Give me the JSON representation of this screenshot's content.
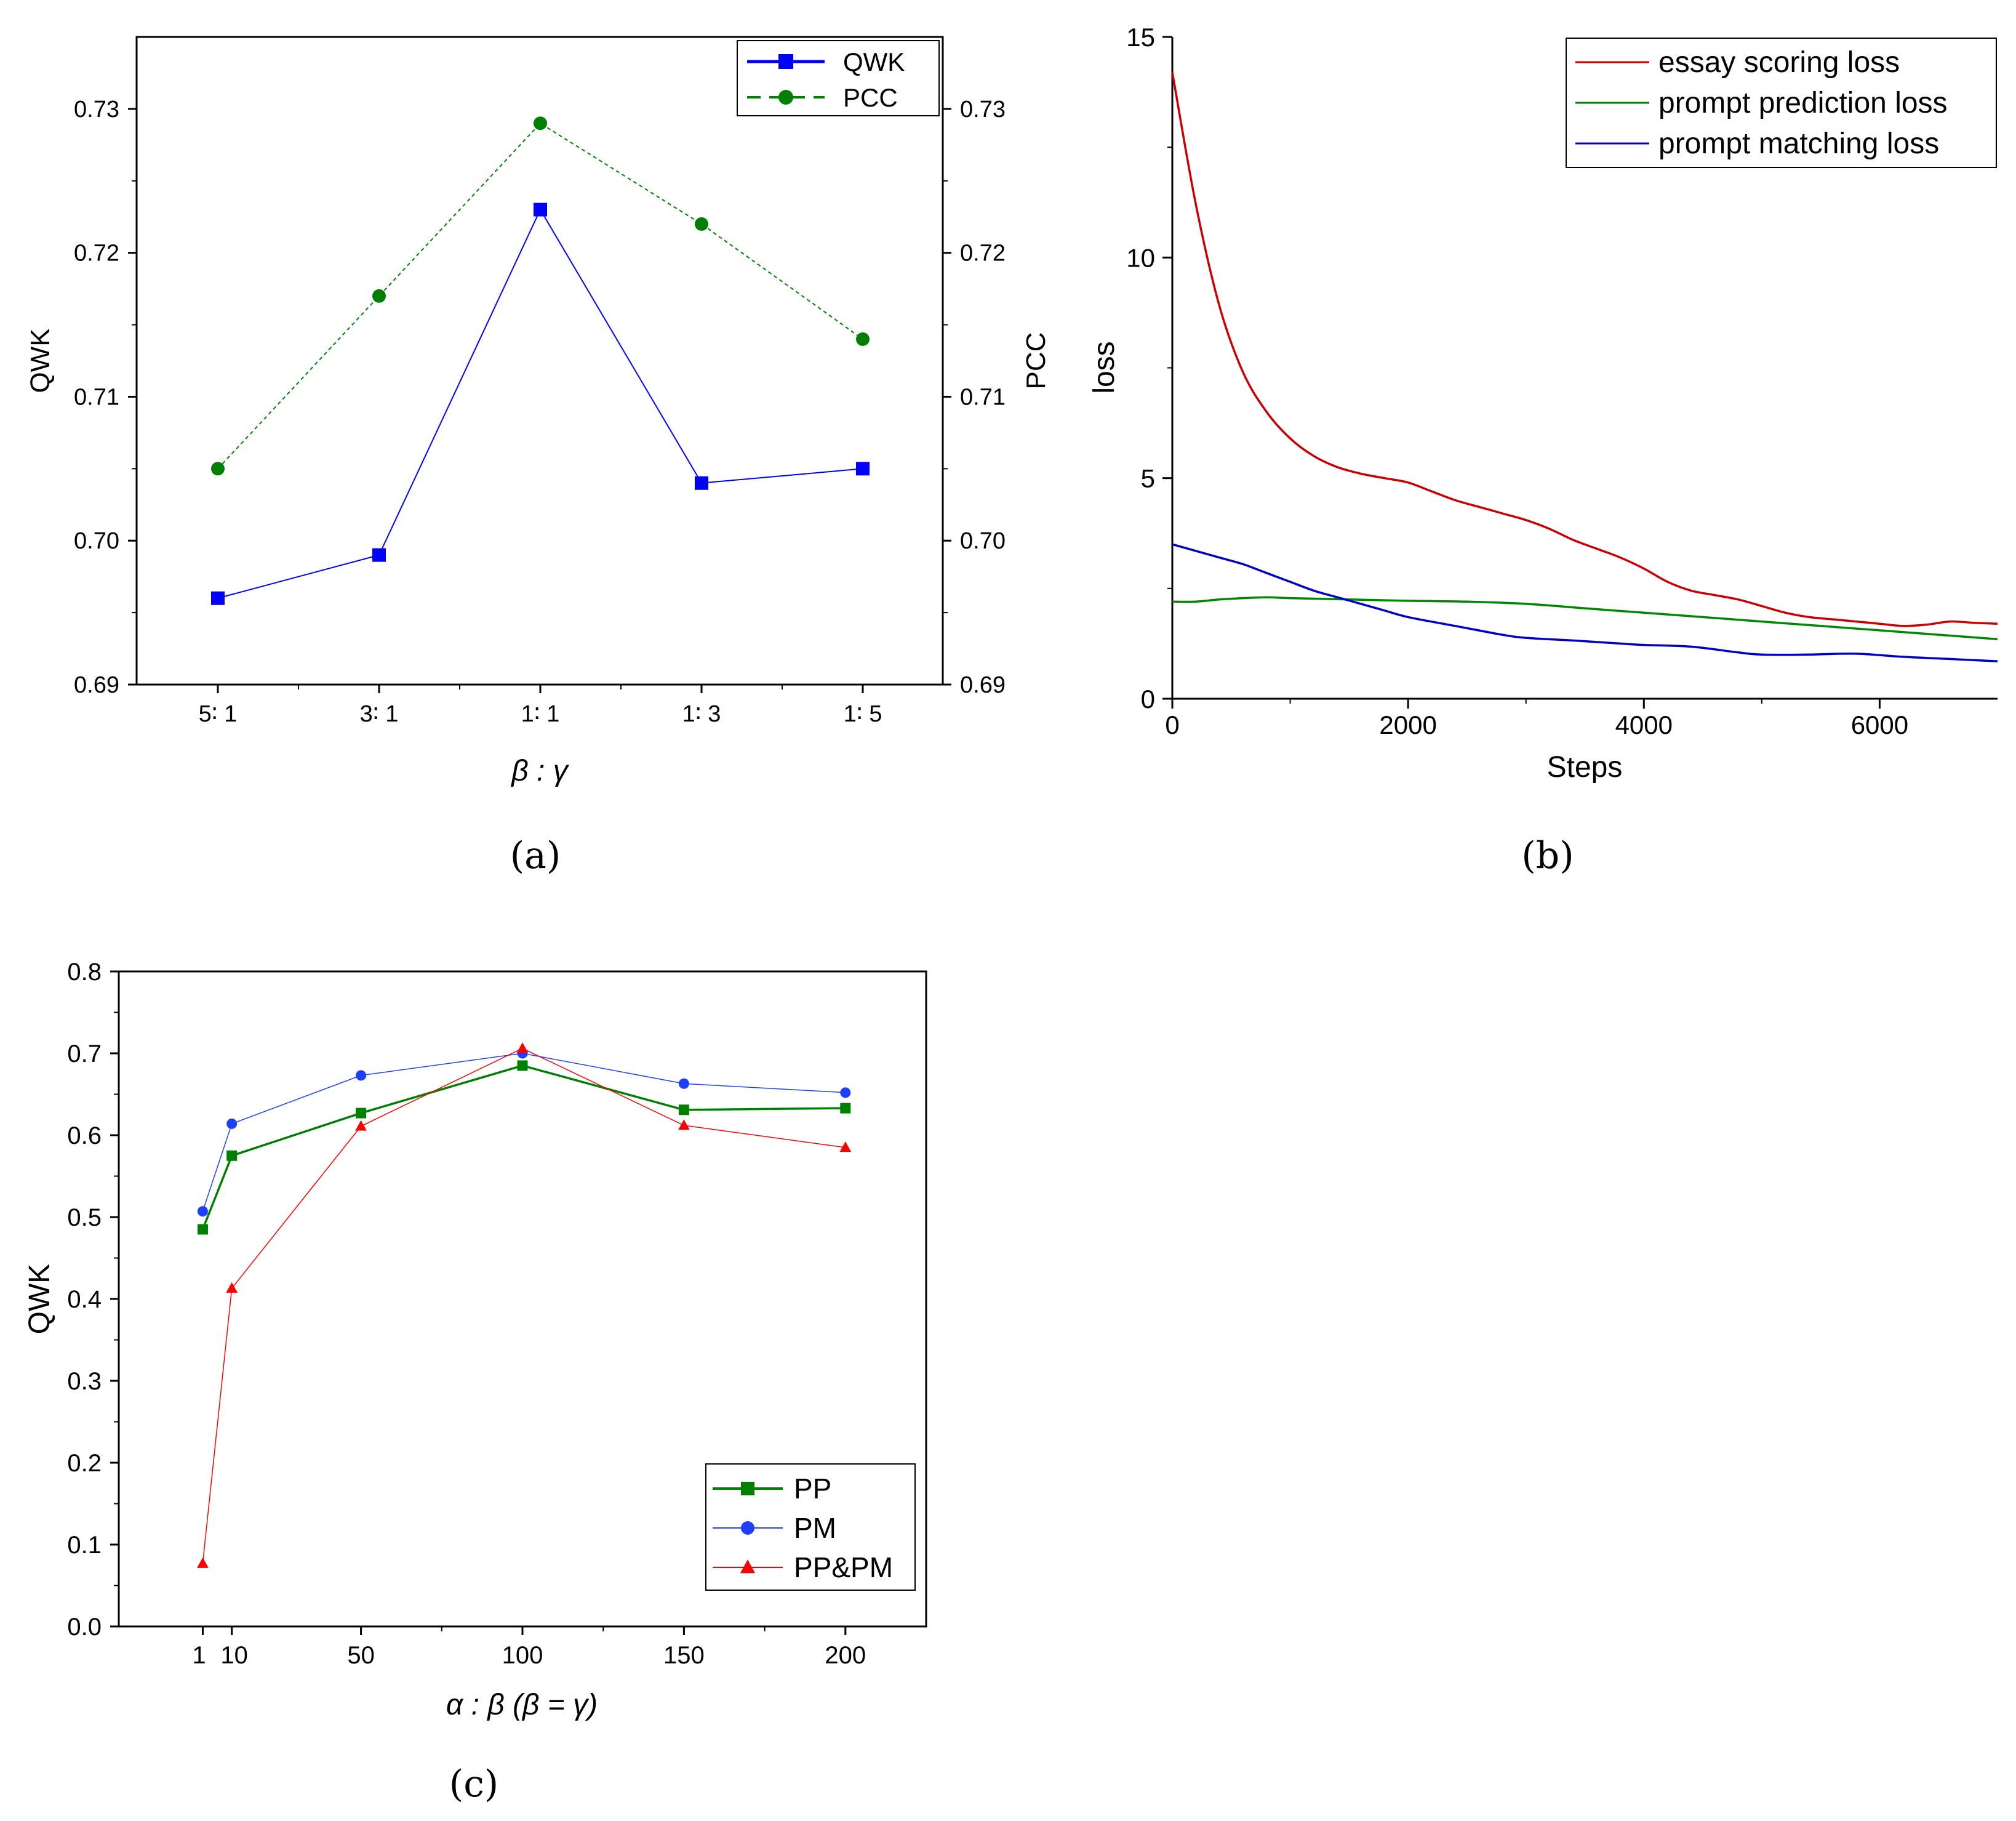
{
  "chart_data": [
    {
      "id": "a",
      "type": "line",
      "panel_label": "(a)",
      "xlabel": "β : γ",
      "ylabel_left": "QWK",
      "ylabel_right": "PCC",
      "categories": [
        "5∶ 1",
        "3∶ 1",
        "1∶ 1",
        "1∶ 3",
        "1∶ 5"
      ],
      "ylim": [
        0.69,
        0.735
      ],
      "y_ticks": [
        0.69,
        0.7,
        0.71,
        0.72,
        0.73
      ],
      "y_tick_labels": [
        "0.69",
        "0.70",
        "0.71",
        "0.72",
        "0.73"
      ],
      "legend_position": "top-right",
      "series": [
        {
          "name": "QWK",
          "color": "#0000ff",
          "marker": "square",
          "line": "solid",
          "values": [
            0.696,
            0.699,
            0.723,
            0.704,
            0.705
          ]
        },
        {
          "name": "PCC",
          "color": "#008000",
          "marker": "circle",
          "line": "dashed",
          "values": [
            0.705,
            0.717,
            0.729,
            0.722,
            0.714
          ]
        }
      ]
    },
    {
      "id": "b",
      "type": "line",
      "panel_label": "(b)",
      "xlabel": "Steps",
      "ylabel": "loss",
      "xlim": [
        0,
        7000
      ],
      "ylim": [
        0,
        15
      ],
      "x_ticks": [
        0,
        2000,
        4000,
        6000
      ],
      "y_ticks": [
        0,
        5,
        10,
        15
      ],
      "legend_position": "top-right",
      "series": [
        {
          "name": "essay scoring loss",
          "color": "#cc0000",
          "x": [
            0,
            200,
            400,
            600,
            800,
            1000,
            1200,
            1400,
            1600,
            1800,
            2000,
            2200,
            2400,
            2600,
            2800,
            3000,
            3200,
            3400,
            3600,
            3800,
            4000,
            4200,
            4400,
            4600,
            4800,
            5000,
            5200,
            5400,
            5600,
            5800,
            6000,
            6200,
            6400,
            6600,
            6800,
            7000
          ],
          "y": [
            14.2,
            11.2,
            8.9,
            7.4,
            6.5,
            5.9,
            5.5,
            5.25,
            5.1,
            5.0,
            4.9,
            4.7,
            4.5,
            4.35,
            4.2,
            4.05,
            3.85,
            3.6,
            3.4,
            3.2,
            2.95,
            2.65,
            2.45,
            2.35,
            2.25,
            2.1,
            1.95,
            1.85,
            1.8,
            1.75,
            1.7,
            1.65,
            1.68,
            1.75,
            1.72,
            1.7
          ]
        },
        {
          "name": "prompt prediction loss",
          "color": "#008800",
          "x": [
            0,
            200,
            400,
            600,
            800,
            1000,
            1500,
            2000,
            2500,
            3000,
            3500,
            4000,
            4500,
            5000,
            5500,
            6000,
            6500,
            7000
          ],
          "y": [
            2.2,
            2.2,
            2.25,
            2.28,
            2.3,
            2.28,
            2.25,
            2.22,
            2.2,
            2.15,
            2.05,
            1.95,
            1.85,
            1.75,
            1.65,
            1.55,
            1.45,
            1.35
          ]
        },
        {
          "name": "prompt matching loss",
          "color": "#0000cc",
          "x": [
            0,
            200,
            400,
            600,
            800,
            1000,
            1200,
            1400,
            1600,
            1800,
            2000,
            2400,
            2800,
            3000,
            3400,
            3800,
            4000,
            4400,
            4800,
            5000,
            5400,
            5800,
            6200,
            6600,
            7000
          ],
          "y": [
            3.5,
            3.35,
            3.2,
            3.05,
            2.85,
            2.65,
            2.45,
            2.3,
            2.15,
            2.0,
            1.85,
            1.65,
            1.45,
            1.38,
            1.32,
            1.25,
            1.22,
            1.18,
            1.05,
            1.0,
            1.0,
            1.02,
            0.95,
            0.9,
            0.85
          ]
        }
      ]
    },
    {
      "id": "c",
      "type": "line",
      "panel_label": "(c)",
      "xlabel": "α : β (β = γ)",
      "ylabel": "QWK",
      "xlim": [
        -25,
        225
      ],
      "ylim": [
        0,
        0.8
      ],
      "x_ticks": [
        1,
        10,
        50,
        100,
        150,
        200
      ],
      "x_tick_labels": [
        "1",
        "10",
        "50",
        "100",
        "150",
        "200"
      ],
      "y_ticks": [
        0.0,
        0.1,
        0.2,
        0.3,
        0.4,
        0.5,
        0.6,
        0.7,
        0.8
      ],
      "y_tick_labels": [
        "0.0",
        "0.1",
        "0.2",
        "0.3",
        "0.4",
        "0.5",
        "0.6",
        "0.7",
        "0.8"
      ],
      "legend_position": "bottom-right",
      "x": [
        1,
        10,
        50,
        100,
        150,
        200
      ],
      "series": [
        {
          "name": "PP",
          "color": "#008000",
          "marker": "square",
          "values": [
            0.485,
            0.575,
            0.627,
            0.685,
            0.631,
            0.633
          ]
        },
        {
          "name": "PM",
          "color": "#1f3fff",
          "marker": "circle",
          "values": [
            0.507,
            0.614,
            0.673,
            0.7,
            0.663,
            0.652
          ]
        },
        {
          "name": "PP&PM",
          "color": "#ff0000",
          "marker": "triangle",
          "values": [
            0.077,
            0.413,
            0.611,
            0.706,
            0.612,
            0.585
          ]
        }
      ]
    }
  ]
}
